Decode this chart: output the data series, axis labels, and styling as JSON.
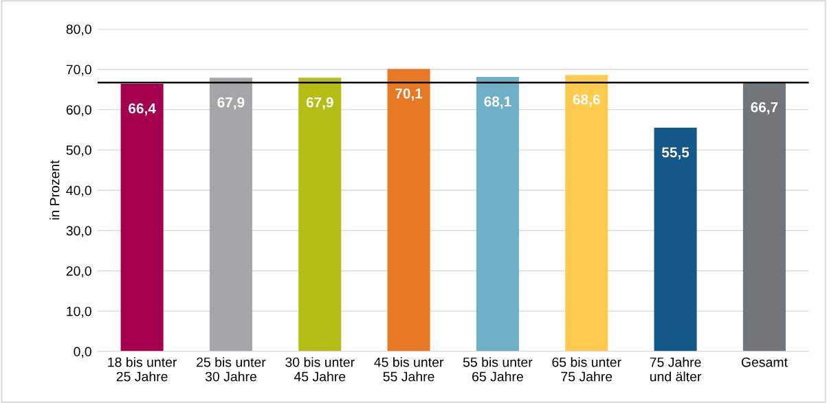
{
  "chart_data": {
    "type": "bar",
    "ylabel": "in Prozent",
    "categories": [
      "18 bis unter\n25 Jahre",
      "25 bis unter\n30 Jahre",
      "30 bis unter\n45 Jahre",
      "45 bis unter\n55 Jahre",
      "55 bis unter\n65 Jahre",
      "65 bis unter\n75 Jahre",
      "75 Jahre\nund älter",
      "Gesamt"
    ],
    "values": [
      66.4,
      67.9,
      67.9,
      70.1,
      68.1,
      68.6,
      55.5,
      66.7
    ],
    "value_labels": [
      "66,4",
      "67,9",
      "67,9",
      "70,1",
      "68,1",
      "68,6",
      "55,5",
      "66,7"
    ],
    "colors": [
      "#a50050",
      "#a6a6a8",
      "#b5be14",
      "#e77824",
      "#6fb0c8",
      "#fecb4f",
      "#14588a",
      "#737679"
    ],
    "ylim": [
      0,
      80
    ],
    "yticks": [
      {
        "value": 0,
        "label": "0,0"
      },
      {
        "value": 10,
        "label": "10,0"
      },
      {
        "value": 20,
        "label": "20,0"
      },
      {
        "value": 30,
        "label": "30,0"
      },
      {
        "value": 40,
        "label": "40,0"
      },
      {
        "value": 50,
        "label": "50,0"
      },
      {
        "value": 60,
        "label": "60,0"
      },
      {
        "value": 70,
        "label": "70,0"
      },
      {
        "value": 80,
        "label": "80,0"
      }
    ],
    "ref_lines": [
      {
        "axis": "y",
        "value": 66.7,
        "color": "#000000",
        "line_style": "solid"
      }
    ],
    "grid": "y",
    "legend": false
  }
}
